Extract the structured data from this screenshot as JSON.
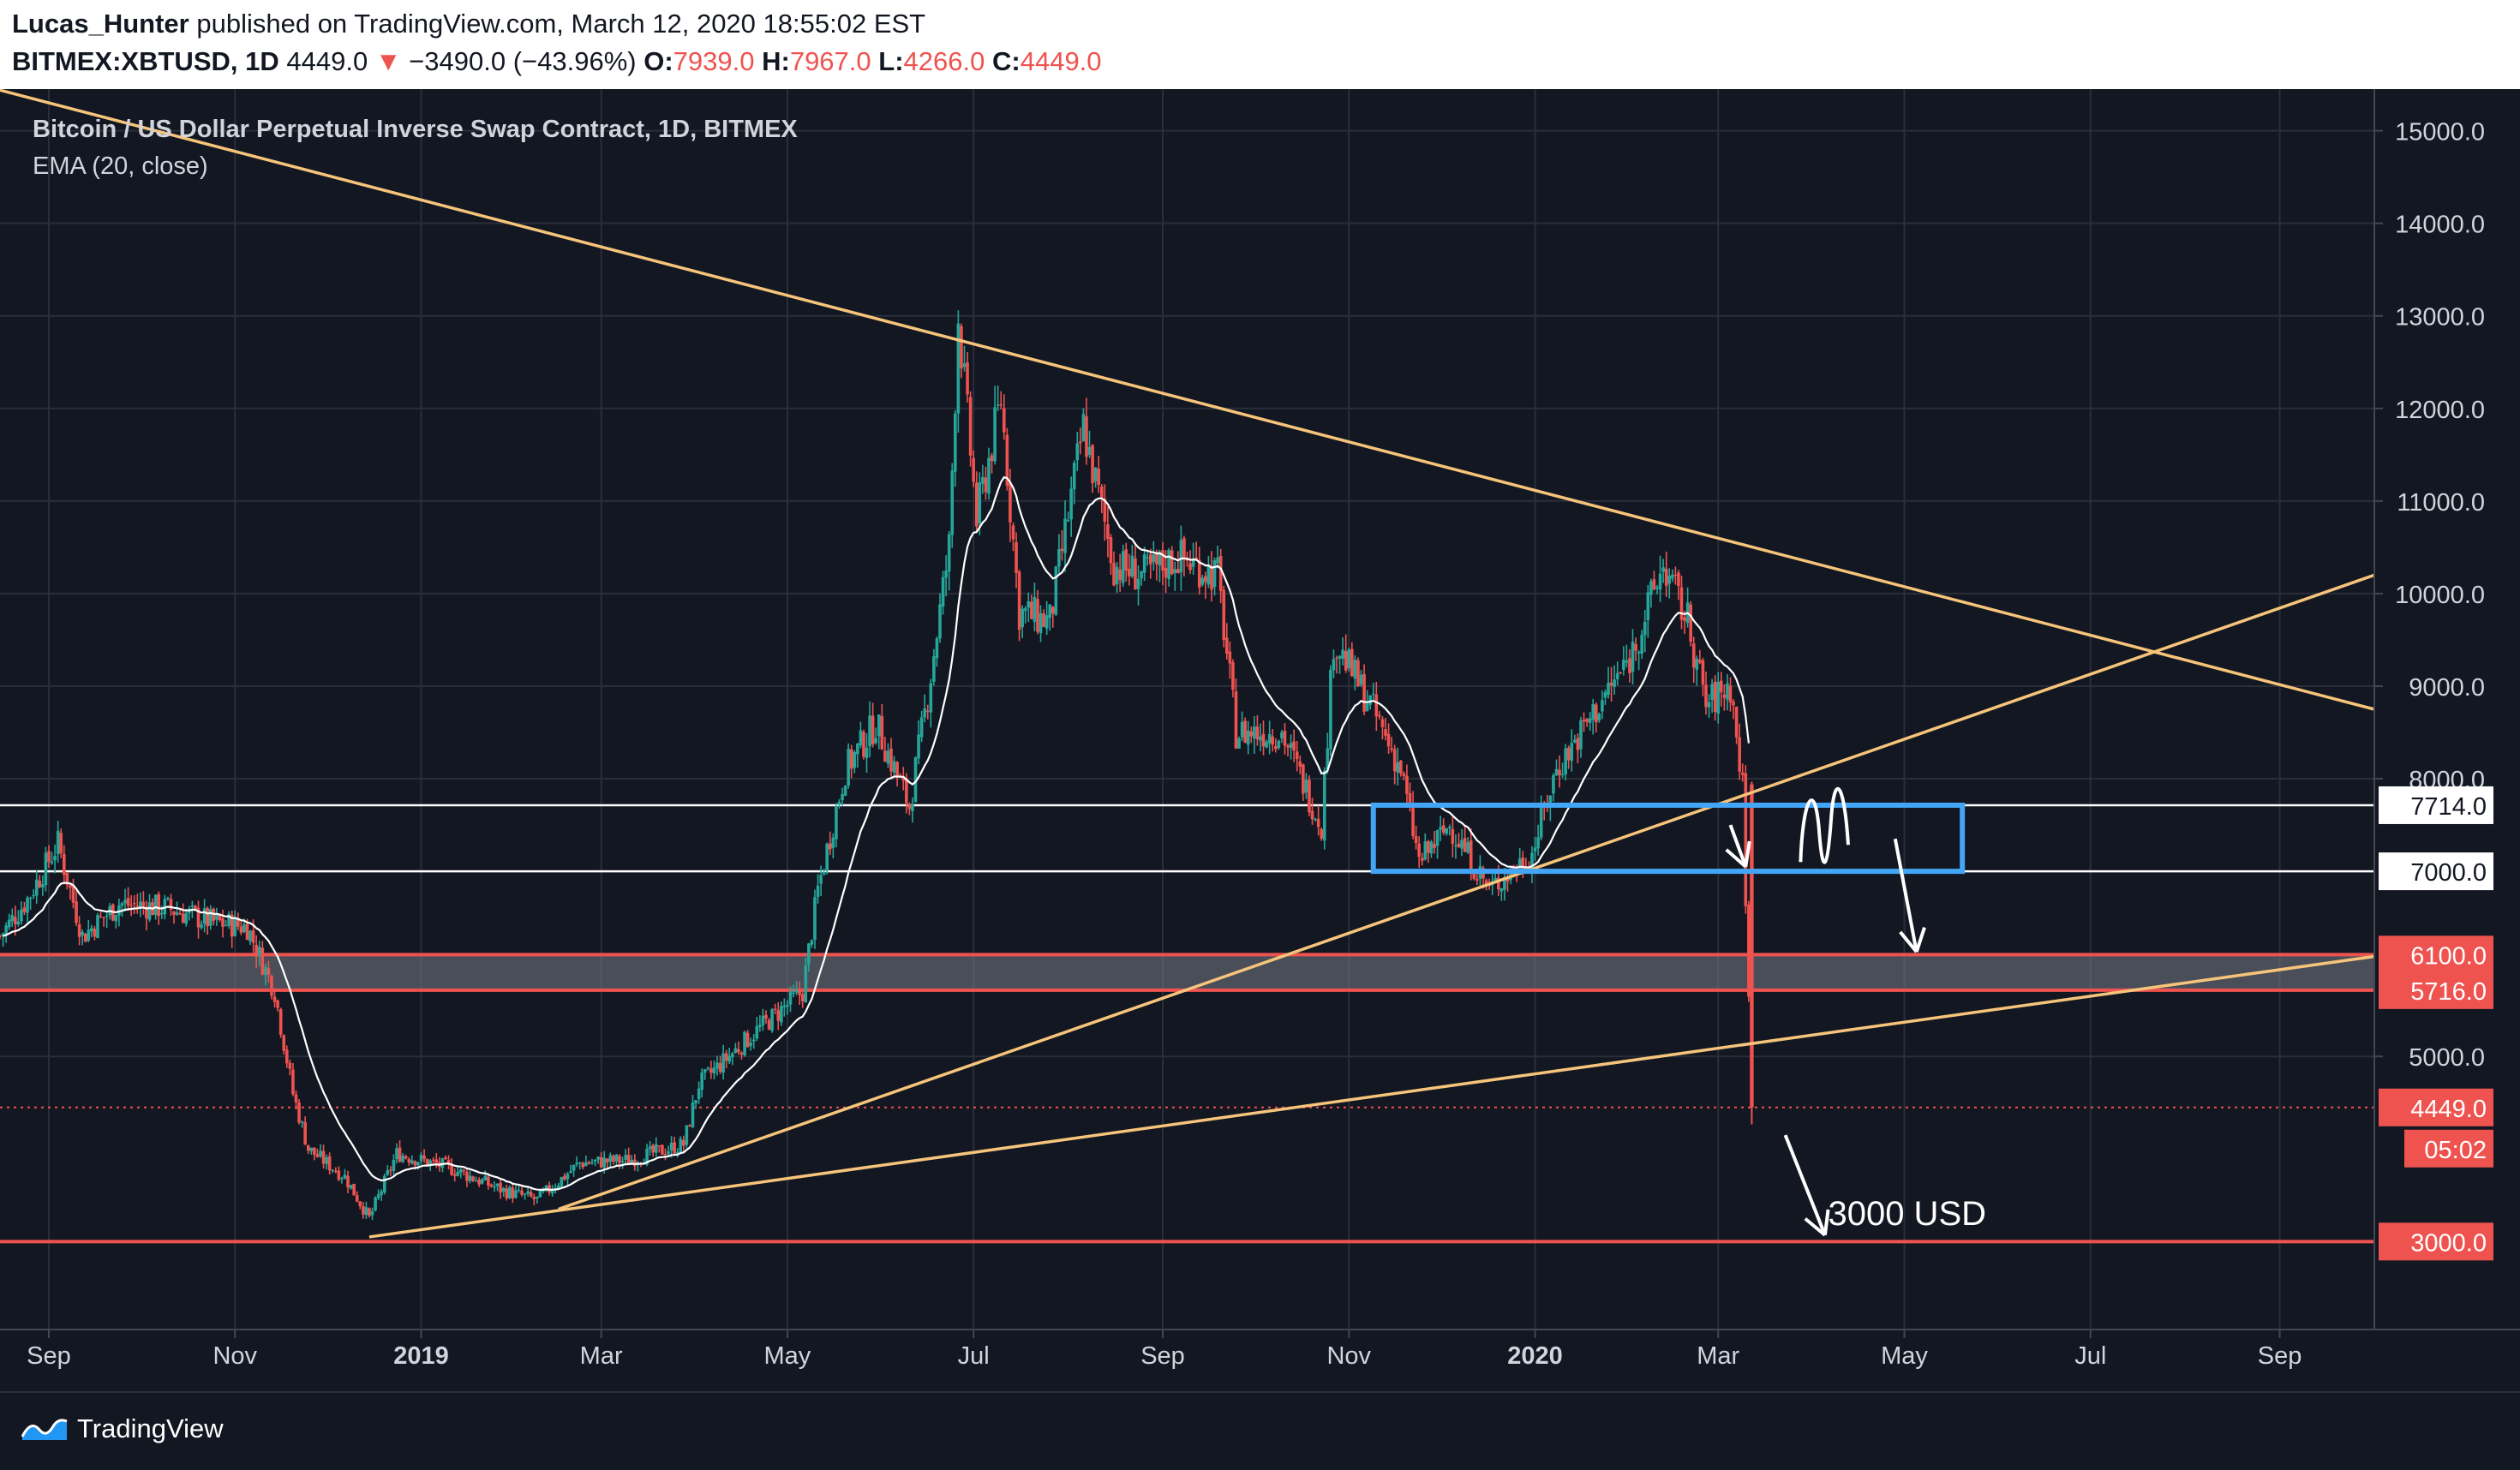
{
  "header": {
    "author": "Lucas_Hunter",
    "published_text": "published on TradingView.com, March 12, 2020 18:55:02 EST",
    "symbol": "BITMEX:XBTUSD",
    "interval": "1D",
    "last": "4449.0",
    "change_arrow": "▼",
    "change": "−3490.0 (−43.96%)",
    "o_label": "O:",
    "o_value": "7939.0",
    "h_label": "H:",
    "h_value": "7967.0",
    "l_label": "L:",
    "l_value": "4266.0",
    "c_label": "C:",
    "c_value": "4449.0"
  },
  "legend": {
    "title": "Bitcoin / US Dollar Perpetual Inverse Swap Contract, 1D, BITMEX",
    "indicator": "EMA (20, close)"
  },
  "footer": {
    "brand": "TradingView"
  },
  "colors": {
    "background": "#131722",
    "grid": "#2a2e39",
    "axis_text": "#d1d4dc",
    "up": "#26a69a",
    "down": "#ef5350",
    "trendline": "#f6c47a",
    "ema": "#ffffff",
    "range_box": "#42a5f5",
    "support": "#ef5350"
  },
  "chart_data": {
    "type": "candlestick",
    "title": "Bitcoin / US Dollar Perpetual Inverse Swap Contract, 1D, BITMEX",
    "y_axis": {
      "ticks": [
        "15000.0",
        "14000.0",
        "13000.0",
        "12000.0",
        "11000.0",
        "10000.0",
        "9000.0",
        "8000.0",
        "5000.0"
      ],
      "tick_values": [
        15000,
        14000,
        13000,
        12000,
        11000,
        10000,
        9000,
        8000,
        5000
      ],
      "range": [
        2050,
        15450
      ]
    },
    "x_axis": {
      "ticks": [
        "Sep",
        "Nov",
        "2019",
        "Mar",
        "May",
        "Jul",
        "Sep",
        "Nov",
        "2020",
        "Mar",
        "May",
        "Jul",
        "Sep"
      ],
      "tick_dates": [
        "2018-09-01",
        "2018-11-01",
        "2019-01-01",
        "2019-03-01",
        "2019-05-01",
        "2019-07-01",
        "2019-09-01",
        "2019-11-01",
        "2020-01-01",
        "2020-03-01",
        "2020-05-01",
        "2020-07-01",
        "2020-09-01"
      ],
      "bold_ticks": [
        "2019",
        "2020"
      ],
      "range": [
        "2018-08-16",
        "2020-10-02"
      ]
    },
    "price_path": [
      [
        "2018-08-16",
        6300
      ],
      [
        "2018-08-25",
        6700
      ],
      [
        "2018-09-04",
        7300
      ],
      [
        "2018-09-12",
        6300
      ],
      [
        "2018-09-24",
        6650
      ],
      [
        "2018-10-10",
        6600
      ],
      [
        "2018-10-25",
        6450
      ],
      [
        "2018-11-05",
        6400
      ],
      [
        "2018-11-14",
        5700
      ],
      [
        "2018-11-20",
        4600
      ],
      [
        "2018-11-25",
        4000
      ],
      [
        "2018-12-07",
        3700
      ],
      [
        "2018-12-15",
        3250
      ],
      [
        "2018-12-24",
        3950
      ],
      [
        "2019-01-10",
        3800
      ],
      [
        "2019-01-28",
        3550
      ],
      [
        "2019-02-08",
        3450
      ],
      [
        "2019-02-22",
        3850
      ],
      [
        "2019-03-10",
        3880
      ],
      [
        "2019-03-28",
        4050
      ],
      [
        "2019-04-02",
        4700
      ],
      [
        "2019-04-20",
        5250
      ],
      [
        "2019-05-06",
        5700
      ],
      [
        "2019-05-11",
        6800
      ],
      [
        "2019-05-20",
        8100
      ],
      [
        "2019-05-30",
        8600
      ],
      [
        "2019-06-10",
        7700
      ],
      [
        "2019-06-16",
        8900
      ],
      [
        "2019-06-23",
        10500
      ],
      [
        "2019-06-26",
        13000
      ],
      [
        "2019-07-02",
        10800
      ],
      [
        "2019-07-10",
        12100
      ],
      [
        "2019-07-16",
        9800
      ],
      [
        "2019-07-26",
        9700
      ],
      [
        "2019-08-06",
        11800
      ],
      [
        "2019-08-16",
        10300
      ],
      [
        "2019-08-26",
        10200
      ],
      [
        "2019-09-06",
        10400
      ],
      [
        "2019-09-19",
        10200
      ],
      [
        "2019-09-25",
        8500
      ],
      [
        "2019-10-10",
        8500
      ],
      [
        "2019-10-23",
        7500
      ],
      [
        "2019-10-27",
        9500
      ],
      [
        "2019-11-08",
        8800
      ],
      [
        "2019-11-18",
        8100
      ],
      [
        "2019-11-24",
        7100
      ],
      [
        "2019-12-04",
        7500
      ],
      [
        "2019-12-17",
        6800
      ],
      [
        "2019-12-31",
        7200
      ],
      [
        "2020-01-08",
        8100
      ],
      [
        "2020-01-20",
        8700
      ],
      [
        "2020-02-01",
        9300
      ],
      [
        "2020-02-12",
        10300
      ],
      [
        "2020-02-20",
        9700
      ],
      [
        "2020-02-26",
        8800
      ],
      [
        "2020-03-05",
        9000
      ],
      [
        "2020-03-09",
        7900
      ],
      [
        "2020-03-12",
        4449
      ]
    ],
    "last_candle": {
      "date": "2020-03-12",
      "open": 7939.0,
      "high": 7967.0,
      "low": 4266.0,
      "close": 4449.0
    },
    "horizontal_lines": [
      {
        "price": 7714.0,
        "label": "7714.0",
        "style": "white"
      },
      {
        "price": 7000.0,
        "label": "7000.0",
        "style": "white"
      },
      {
        "price": 6100.0,
        "label": "6100.0",
        "style": "red"
      },
      {
        "price": 5716.0,
        "label": "5716.0",
        "style": "red"
      },
      {
        "price": 4449.0,
        "label": "4449.0",
        "style": "last-price"
      },
      {
        "price": 3000.0,
        "label": "3000.0",
        "style": "red"
      }
    ],
    "countdown": "05:02",
    "zone": {
      "from": 5716.0,
      "to": 6100.0
    },
    "range_box": {
      "start": "2019-11-09",
      "end": "2020-05-20",
      "top": 7714.0,
      "bottom": 7000.0
    },
    "trendlines": [
      {
        "from": [
          "2018-07-05",
          15800
        ],
        "to": [
          "2020-10-02",
          8750
        ]
      },
      {
        "from": [
          "2019-02-15",
          3350
        ],
        "to": [
          "2020-10-02",
          10200
        ]
      },
      {
        "from": [
          "2018-12-15",
          3050
        ],
        "to": [
          "2020-10-02",
          6080
        ]
      }
    ],
    "annotations": [
      {
        "type": "arrow",
        "from": [
          "2020-03-05",
          7500
        ],
        "to": [
          "2020-03-10",
          7050
        ]
      },
      {
        "type": "arrow",
        "from": [
          "2020-04-28",
          7350
        ],
        "to": [
          "2020-05-05",
          6130
        ]
      },
      {
        "type": "arrow",
        "from": [
          "2020-03-23",
          4150
        ],
        "to": [
          "2020-04-05",
          3070
        ]
      },
      {
        "type": "text",
        "text": "3000 USD",
        "at": [
          "2020-04-06",
          3180
        ]
      }
    ]
  }
}
